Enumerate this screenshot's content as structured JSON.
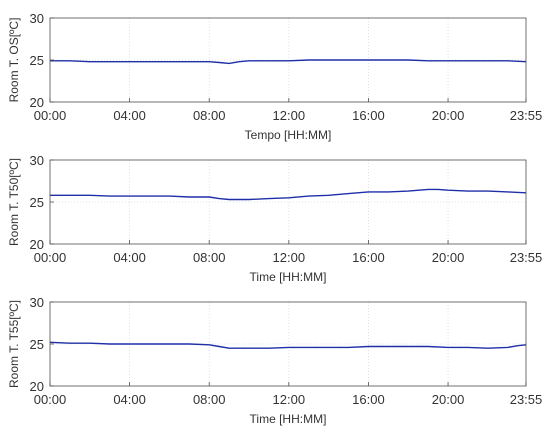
{
  "colors": {
    "line": "#1f2fa8",
    "grid": "#d9d9d9",
    "axis": "#4d4d4d",
    "text": "#333333"
  },
  "chart_data": [
    {
      "type": "line",
      "title": "",
      "xlabel": "Tempo [HH:MM]",
      "ylabel": "Room T. OS[ºC]",
      "ylim": [
        20,
        30
      ],
      "yticks": [
        20,
        25,
        30
      ],
      "xlim": [
        "00:00",
        "23:55"
      ],
      "xticks": [
        "00:00",
        "04:00",
        "08:00",
        "12:00",
        "16:00",
        "20:00",
        "23:55"
      ],
      "grid": true,
      "series": [
        {
          "x": [
            "00:00",
            "01:00",
            "02:00",
            "03:00",
            "04:00",
            "05:00",
            "06:00",
            "07:00",
            "08:00",
            "08:30",
            "09:00",
            "09:30",
            "10:00",
            "11:00",
            "12:00",
            "13:00",
            "14:00",
            "15:00",
            "16:00",
            "17:00",
            "18:00",
            "19:00",
            "20:00",
            "21:00",
            "22:00",
            "23:00",
            "23:55"
          ],
          "y": [
            24.9,
            24.9,
            24.8,
            24.8,
            24.8,
            24.8,
            24.8,
            24.8,
            24.8,
            24.7,
            24.6,
            24.8,
            24.9,
            24.9,
            24.9,
            25.0,
            25.0,
            25.0,
            25.0,
            25.0,
            25.0,
            24.9,
            24.9,
            24.9,
            24.9,
            24.9,
            24.8
          ]
        }
      ]
    },
    {
      "type": "line",
      "title": "",
      "xlabel": "Time [HH:MM]",
      "ylabel": "Room T. T50[ºC]",
      "ylim": [
        20,
        30
      ],
      "yticks": [
        20,
        25,
        30
      ],
      "xlim": [
        "00:00",
        "23:55"
      ],
      "xticks": [
        "00:00",
        "04:00",
        "08:00",
        "12:00",
        "16:00",
        "20:00",
        "23:55"
      ],
      "grid": true,
      "series": [
        {
          "x": [
            "00:00",
            "01:00",
            "02:00",
            "03:00",
            "04:00",
            "05:00",
            "06:00",
            "07:00",
            "08:00",
            "08:30",
            "09:00",
            "09:30",
            "10:00",
            "11:00",
            "12:00",
            "13:00",
            "14:00",
            "15:00",
            "16:00",
            "17:00",
            "18:00",
            "19:00",
            "19:30",
            "20:00",
            "21:00",
            "22:00",
            "23:00",
            "23:55"
          ],
          "y": [
            25.8,
            25.8,
            25.8,
            25.7,
            25.7,
            25.7,
            25.7,
            25.6,
            25.6,
            25.4,
            25.3,
            25.3,
            25.3,
            25.4,
            25.5,
            25.7,
            25.8,
            26.0,
            26.2,
            26.2,
            26.3,
            26.5,
            26.5,
            26.4,
            26.3,
            26.3,
            26.2,
            26.1
          ]
        }
      ]
    },
    {
      "type": "line",
      "title": "",
      "xlabel": "Time [HH:MM]",
      "ylabel": "Room T. T55[ºC]",
      "ylim": [
        20,
        30
      ],
      "yticks": [
        20,
        25,
        30
      ],
      "xlim": [
        "00:00",
        "23:55"
      ],
      "xticks": [
        "00:00",
        "04:00",
        "08:00",
        "12:00",
        "16:00",
        "20:00",
        "23:55"
      ],
      "grid": true,
      "series": [
        {
          "x": [
            "00:00",
            "01:00",
            "02:00",
            "03:00",
            "04:00",
            "05:00",
            "06:00",
            "07:00",
            "08:00",
            "08:30",
            "09:00",
            "10:00",
            "11:00",
            "12:00",
            "13:00",
            "14:00",
            "15:00",
            "16:00",
            "17:00",
            "18:00",
            "19:00",
            "20:00",
            "21:00",
            "22:00",
            "23:00",
            "23:30",
            "23:55"
          ],
          "y": [
            25.2,
            25.1,
            25.1,
            25.0,
            25.0,
            25.0,
            25.0,
            25.0,
            24.9,
            24.7,
            24.5,
            24.5,
            24.5,
            24.6,
            24.6,
            24.6,
            24.6,
            24.7,
            24.7,
            24.7,
            24.7,
            24.6,
            24.6,
            24.5,
            24.6,
            24.8,
            24.9
          ]
        }
      ]
    }
  ]
}
